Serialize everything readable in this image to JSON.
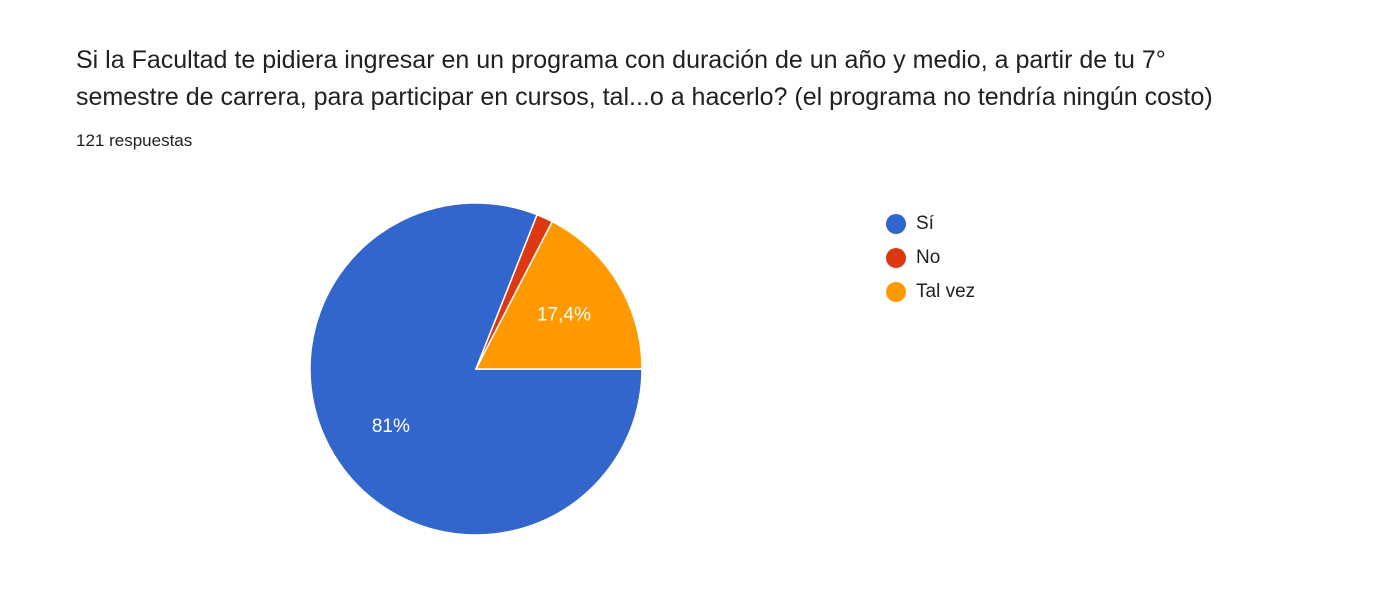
{
  "header": {
    "title_line1": "Si la Facultad te pidiera ingresar en un programa con duración de un año y medio, a partir de tu 7°",
    "title_line2": "semestre de carrera, para participar en cursos, tal...o a hacerlo? (el programa no tendría ningún costo)",
    "response_count": "121 respuestas"
  },
  "chart_data": {
    "type": "pie",
    "slices": [
      {
        "label": "Sí",
        "percent": 81.0,
        "color": "#3366cc",
        "data_label": "81%"
      },
      {
        "label": "No",
        "percent": 1.6,
        "color": "#dc3912",
        "data_label": ""
      },
      {
        "label": "Tal vez",
        "percent": 17.4,
        "color": "#ff9900",
        "data_label": "17,4%"
      }
    ],
    "legend_position": "right"
  }
}
